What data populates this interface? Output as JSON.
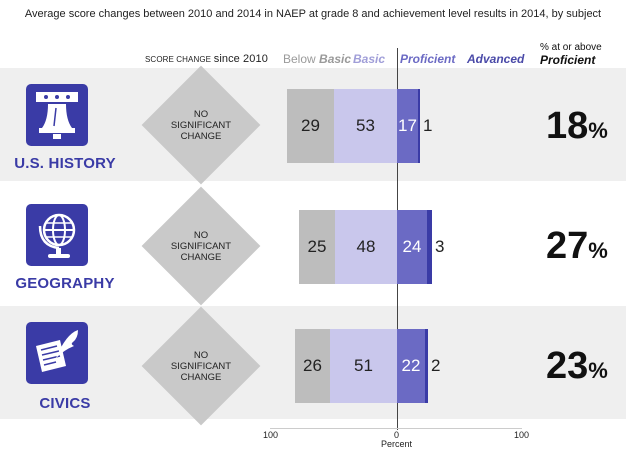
{
  "chart_data": {
    "type": "bar",
    "title": "Average score changes between 2010 and 2014 in NAEP at grade 8 and achievement level results in 2014, by subject",
    "xlabel": "Percent",
    "xlim": [
      -100,
      100
    ],
    "x_ticks": [
      "100",
      "0",
      "100"
    ],
    "column_headers": {
      "score_change_prefix": "Score change",
      "score_change_suffix": "since 2010",
      "below_basic_prefix": "Below",
      "below_basic_bold": "Basic",
      "basic": "Basic",
      "proficient": "Proficient",
      "advanced": "Advanced",
      "pct_line1": "% at or above",
      "pct_line2": "Proficient"
    },
    "categories": [
      "U.S. HISTORY",
      "GEOGRAPHY",
      "CIVICS"
    ],
    "series": [
      {
        "name": "Below Basic",
        "values": [
          29,
          25,
          26
        ],
        "color": "#bdbdbd"
      },
      {
        "name": "Basic",
        "values": [
          53,
          48,
          51
        ],
        "color": "#c9c7ec"
      },
      {
        "name": "Proficient",
        "values": [
          17,
          24,
          22
        ],
        "color": "#6b6ac4"
      },
      {
        "name": "Advanced",
        "values": [
          1,
          3,
          2
        ],
        "color": "#3a3ba6"
      }
    ],
    "score_change": [
      "NO SIGNIFICANT CHANGE",
      "NO SIGNIFICANT CHANGE",
      "NO SIGNIFICANT CHANGE"
    ],
    "percent_at_or_above_proficient": [
      18,
      27,
      23
    ]
  },
  "subjects": [
    {
      "name": "U.S. HISTORY",
      "icon": "liberty-bell-icon",
      "change_l1": "NO",
      "change_l2": "SIGNIFICANT",
      "change_l3": "CHANGE",
      "pct": "18",
      "below": "29",
      "basic": "53",
      "prof": "17",
      "adv": "1"
    },
    {
      "name": "GEOGRAPHY",
      "icon": "globe-icon",
      "change_l1": "NO",
      "change_l2": "SIGNIFICANT",
      "change_l3": "CHANGE",
      "pct": "27",
      "below": "25",
      "basic": "48",
      "prof": "24",
      "adv": "3"
    },
    {
      "name": "CIVICS",
      "icon": "quill-document-icon",
      "change_l1": "NO",
      "change_l2": "SIGNIFICANT",
      "change_l3": "CHANGE",
      "pct": "23",
      "below": "26",
      "basic": "51",
      "prof": "22",
      "adv": "2"
    }
  ],
  "pct_sign": "%",
  "colors": {
    "brand": "#3a3ba6",
    "row_bg": "#efefef"
  }
}
